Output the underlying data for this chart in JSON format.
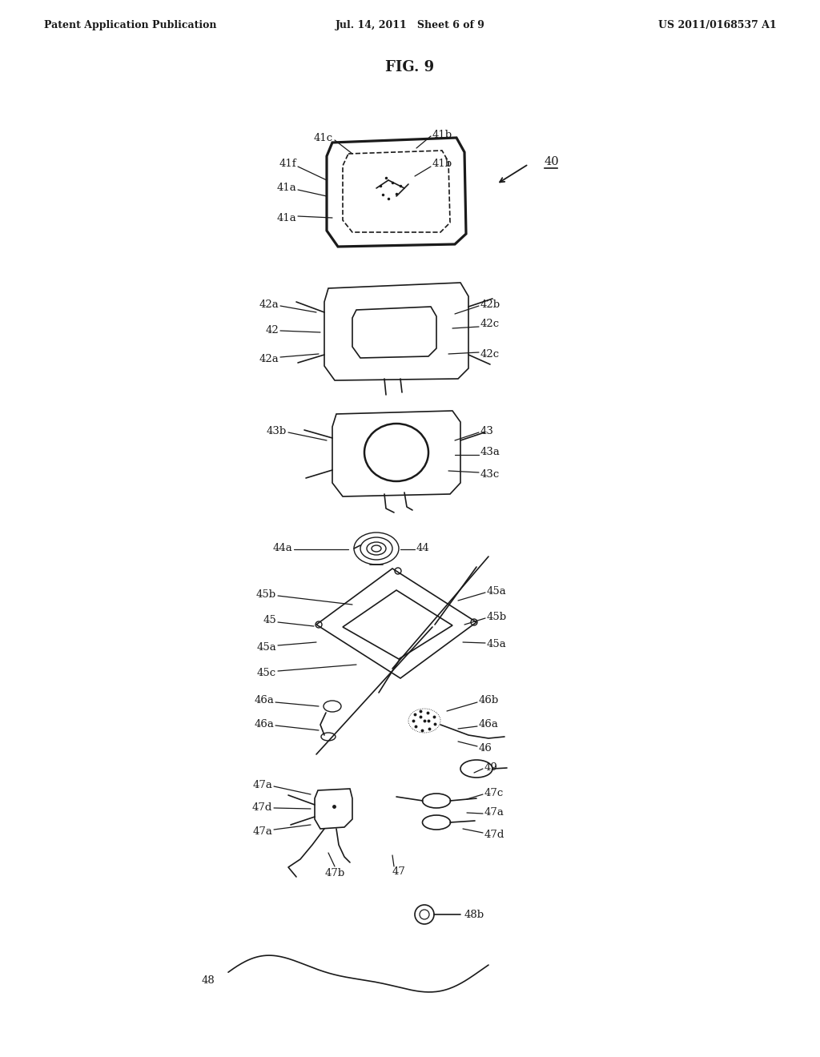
{
  "bg_color": "#ffffff",
  "header_left": "Patent Application Publication",
  "header_mid": "Jul. 14, 2011   Sheet 6 of 9",
  "header_right": "US 2011/0168537 A1",
  "fig_title": "FIG. 9",
  "fig_width": 10.24,
  "fig_height": 13.2,
  "dpi": 100,
  "text_color": "#1a1a1a"
}
